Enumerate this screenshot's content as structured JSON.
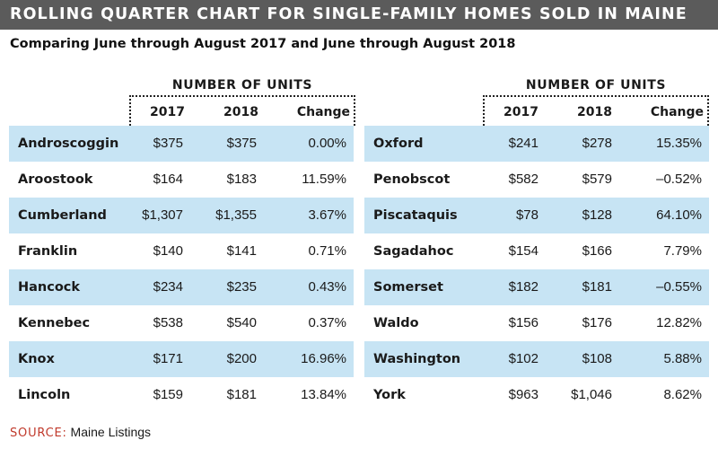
{
  "title": "ROLLING QUARTER CHART FOR SINGLE-FAMILY HOMES SOLD IN MAINE",
  "subtitle": "Comparing June through August 2017 and June through August 2018",
  "group_title": "NUMBER OF UNITS",
  "columns": {
    "y1": "2017",
    "y2": "2018",
    "change": "Change"
  },
  "source": {
    "label": "SOURCE:",
    "text": "Maine Listings"
  },
  "colors": {
    "title_bar": "#5b5b5b",
    "row_shade": "#c7e4f4",
    "source_label": "#c0392b"
  },
  "chart_data": {
    "type": "table",
    "title": "ROLLING QUARTER CHART FOR SINGLE-FAMILY HOMES SOLD IN MAINE",
    "subtitle": "Comparing June through August 2017 and June through August 2018",
    "columns": [
      "",
      "2017",
      "2018",
      "Change"
    ],
    "left": [
      {
        "county": "Androscoggin",
        "y2017": "$375",
        "y2018": "$375",
        "change": "0.00%"
      },
      {
        "county": "Aroostook",
        "y2017": "$164",
        "y2018": "$183",
        "change": "11.59%"
      },
      {
        "county": "Cumberland",
        "y2017": "$1,307",
        "y2018": "$1,355",
        "change": "3.67%"
      },
      {
        "county": "Franklin",
        "y2017": "$140",
        "y2018": "$141",
        "change": "0.71%"
      },
      {
        "county": "Hancock",
        "y2017": "$234",
        "y2018": "$235",
        "change": "0.43%"
      },
      {
        "county": "Kennebec",
        "y2017": "$538",
        "y2018": "$540",
        "change": "0.37%"
      },
      {
        "county": "Knox",
        "y2017": "$171",
        "y2018": "$200",
        "change": "16.96%"
      },
      {
        "county": "Lincoln",
        "y2017": "$159",
        "y2018": "$181",
        "change": "13.84%"
      }
    ],
    "right": [
      {
        "county": "Oxford",
        "y2017": "$241",
        "y2018": "$278",
        "change": "15.35%"
      },
      {
        "county": "Penobscot",
        "y2017": "$582",
        "y2018": "$579",
        "change": "–0.52%"
      },
      {
        "county": "Piscataquis",
        "y2017": "$78",
        "y2018": "$128",
        "change": "64.10%"
      },
      {
        "county": "Sagadahoc",
        "y2017": "$154",
        "y2018": "$166",
        "change": "7.79%"
      },
      {
        "county": "Somerset",
        "y2017": "$182",
        "y2018": "$181",
        "change": "–0.55%"
      },
      {
        "county": "Waldo",
        "y2017": "$156",
        "y2018": "$176",
        "change": "12.82%"
      },
      {
        "county": "Washington",
        "y2017": "$102",
        "y2018": "$108",
        "change": "5.88%"
      },
      {
        "county": "York",
        "y2017": "$963",
        "y2018": "$1,046",
        "change": "8.62%"
      }
    ]
  }
}
